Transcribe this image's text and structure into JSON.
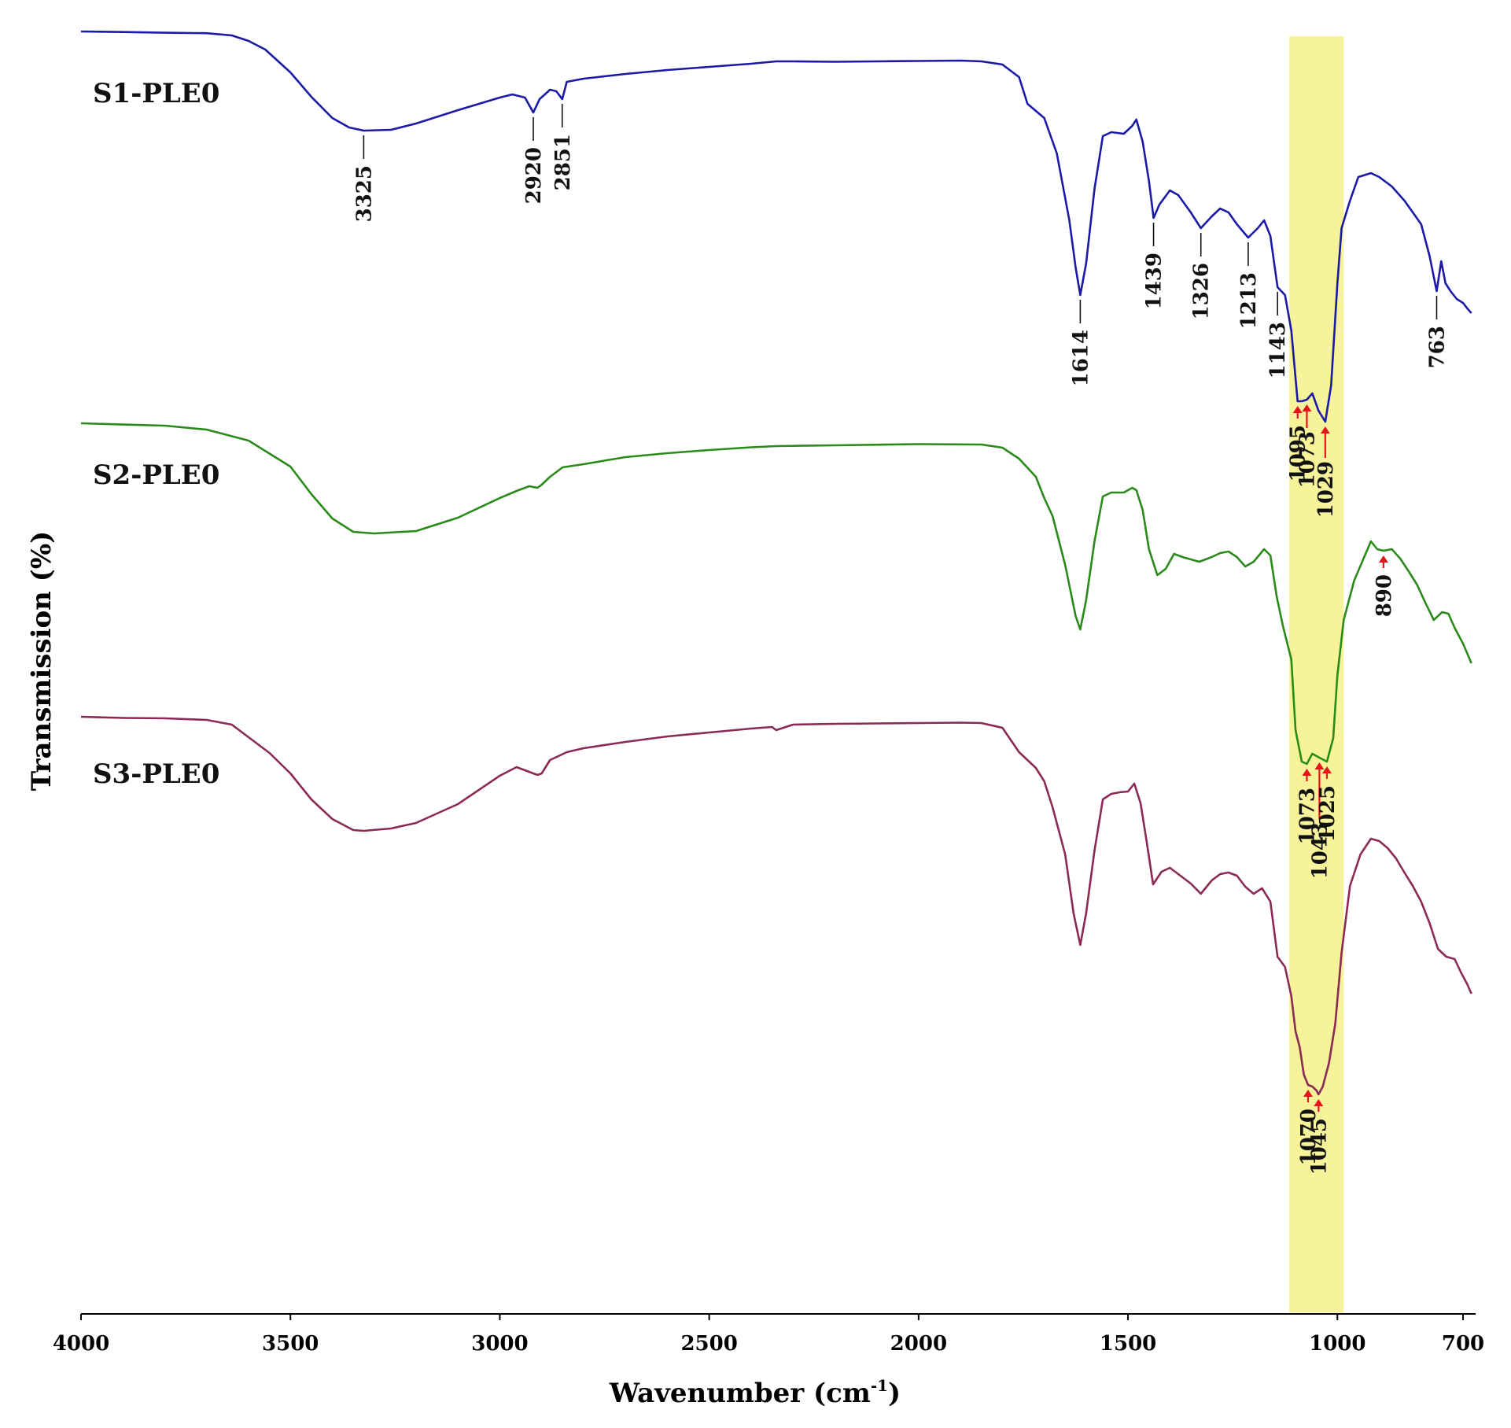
{
  "chart_data": {
    "type": "line",
    "xlabel": "Wavenumber (cm",
    "xlabel_sup": "-1",
    "xlabel_close": ")",
    "ylabel": "Transmission (%)",
    "xlim": [
      4000,
      670
    ],
    "x_reversed": true,
    "xticks": [
      {
        "value": 4000,
        "label": "4000"
      },
      {
        "value": 3500,
        "label": "3500"
      },
      {
        "value": 3000,
        "label": "3000"
      },
      {
        "value": 2500,
        "label": "2500"
      },
      {
        "value": 2000,
        "label": "2000"
      },
      {
        "value": 1500,
        "label": "1500"
      },
      {
        "value": 1000,
        "label": "1000"
      },
      {
        "value": 700,
        "label": "700"
      }
    ],
    "highlight_band": {
      "from": 1115,
      "to": 985,
      "color": "#f7f39a"
    },
    "colors": {
      "s1": "#1a1aa6",
      "s2": "#2a8a1a",
      "s3": "#8a2a55",
      "arrow": "#e8131a"
    },
    "series": [
      {
        "name": "S1-PLE0",
        "color": "#1a1aa6",
        "points": [
          [
            4000,
            0.0
          ],
          [
            3900,
            0.7
          ],
          [
            3800,
            1.6
          ],
          [
            3700,
            2.2
          ],
          [
            3640,
            5.0
          ],
          [
            3600,
            12.0
          ],
          [
            3560,
            23.0
          ],
          [
            3500,
            52.0
          ],
          [
            3450,
            83.0
          ],
          [
            3400,
            110.0
          ],
          [
            3360,
            122.0
          ],
          [
            3325,
            126.0
          ],
          [
            3260,
            125.0
          ],
          [
            3200,
            117.0
          ],
          [
            3100,
            100.0
          ],
          [
            3000,
            84.0
          ],
          [
            2970,
            80.0
          ],
          [
            2940,
            84.0
          ],
          [
            2920,
            103.0
          ],
          [
            2905,
            86.0
          ],
          [
            2880,
            74.0
          ],
          [
            2865,
            76.0
          ],
          [
            2851,
            86.0
          ],
          [
            2840,
            64.0
          ],
          [
            2800,
            60.0
          ],
          [
            2700,
            54.0
          ],
          [
            2600,
            49.0
          ],
          [
            2500,
            45.0
          ],
          [
            2400,
            41.0
          ],
          [
            2340,
            38.0
          ],
          [
            2300,
            38.0
          ],
          [
            2200,
            38.5
          ],
          [
            2100,
            38.0
          ],
          [
            2000,
            37.5
          ],
          [
            1900,
            37.0
          ],
          [
            1850,
            38.0
          ],
          [
            1800,
            42.0
          ],
          [
            1760,
            58.0
          ],
          [
            1740,
            92.0
          ],
          [
            1700,
            110.0
          ],
          [
            1670,
            155.0
          ],
          [
            1640,
            240.0
          ],
          [
            1625,
            300.0
          ],
          [
            1614,
            335.0
          ],
          [
            1600,
            295.0
          ],
          [
            1580,
            200.0
          ],
          [
            1560,
            133.0
          ],
          [
            1540,
            128.0
          ],
          [
            1510,
            130.0
          ],
          [
            1490,
            120.0
          ],
          [
            1480,
            112.0
          ],
          [
            1465,
            140.0
          ],
          [
            1450,
            190.0
          ],
          [
            1439,
            237.0
          ],
          [
            1425,
            220.0
          ],
          [
            1400,
            202.0
          ],
          [
            1380,
            208.0
          ],
          [
            1350,
            230.0
          ],
          [
            1326,
            250.0
          ],
          [
            1300,
            235.0
          ],
          [
            1280,
            225.0
          ],
          [
            1260,
            230.0
          ],
          [
            1240,
            245.0
          ],
          [
            1213,
            262.0
          ],
          [
            1190,
            250.0
          ],
          [
            1175,
            240.0
          ],
          [
            1160,
            260.0
          ],
          [
            1143,
            325.0
          ],
          [
            1125,
            335.0
          ],
          [
            1110,
            380.0
          ],
          [
            1095,
            470.0
          ],
          [
            1085,
            470.0
          ],
          [
            1073,
            468.0
          ],
          [
            1060,
            460.0
          ],
          [
            1045,
            482.0
          ],
          [
            1029,
            496.0
          ],
          [
            1015,
            450.0
          ],
          [
            1000,
            320.0
          ],
          [
            990,
            250.0
          ],
          [
            970,
            215.0
          ],
          [
            950,
            185.0
          ],
          [
            920,
            180.0
          ],
          [
            900,
            185.0
          ],
          [
            870,
            197.0
          ],
          [
            840,
            215.0
          ],
          [
            800,
            245.0
          ],
          [
            780,
            285.0
          ],
          [
            763,
            330.0
          ],
          [
            752,
            292.0
          ],
          [
            742,
            320.0
          ],
          [
            730,
            330.0
          ],
          [
            715,
            340.0
          ],
          [
            700,
            345.0
          ],
          [
            690,
            352.0
          ],
          [
            680,
            358.0
          ]
        ]
      },
      {
        "name": "S2-PLE0",
        "color": "#2a8a1a",
        "points": [
          [
            4000,
            0.0
          ],
          [
            3900,
            1.6
          ],
          [
            3800,
            3.0
          ],
          [
            3700,
            8.0
          ],
          [
            3600,
            22.0
          ],
          [
            3500,
            55.0
          ],
          [
            3450,
            90.0
          ],
          [
            3400,
            121.0
          ],
          [
            3350,
            138.0
          ],
          [
            3300,
            140.0
          ],
          [
            3200,
            137.0
          ],
          [
            3100,
            120.0
          ],
          [
            3000,
            95.0
          ],
          [
            2960,
            86.0
          ],
          [
            2930,
            80.0
          ],
          [
            2910,
            82.0
          ],
          [
            2900,
            78.0
          ],
          [
            2880,
            68.0
          ],
          [
            2850,
            56.0
          ],
          [
            2800,
            52.0
          ],
          [
            2700,
            43.0
          ],
          [
            2600,
            38.0
          ],
          [
            2500,
            34.0
          ],
          [
            2400,
            30.5
          ],
          [
            2340,
            29.0
          ],
          [
            2200,
            28.0
          ],
          [
            2000,
            26.5
          ],
          [
            1850,
            27.0
          ],
          [
            1800,
            31.0
          ],
          [
            1760,
            45.0
          ],
          [
            1720,
            68.0
          ],
          [
            1700,
            95.0
          ],
          [
            1680,
            118.0
          ],
          [
            1650,
            180.0
          ],
          [
            1625,
            245.0
          ],
          [
            1614,
            262.0
          ],
          [
            1600,
            225.0
          ],
          [
            1580,
            150.0
          ],
          [
            1560,
            93.0
          ],
          [
            1540,
            88.0
          ],
          [
            1510,
            88.0
          ],
          [
            1490,
            82.0
          ],
          [
            1480,
            85.0
          ],
          [
            1465,
            110.0
          ],
          [
            1450,
            160.0
          ],
          [
            1430,
            193.0
          ],
          [
            1410,
            185.0
          ],
          [
            1390,
            166.0
          ],
          [
            1370,
            170.0
          ],
          [
            1330,
            176.0
          ],
          [
            1300,
            170.0
          ],
          [
            1280,
            165.0
          ],
          [
            1260,
            163.0
          ],
          [
            1240,
            170.0
          ],
          [
            1220,
            182.0
          ],
          [
            1200,
            176.0
          ],
          [
            1175,
            160.0
          ],
          [
            1160,
            168.0
          ],
          [
            1145,
            220.0
          ],
          [
            1130,
            258.0
          ],
          [
            1110,
            300.0
          ],
          [
            1100,
            390.0
          ],
          [
            1085,
            430.0
          ],
          [
            1073,
            433.0
          ],
          [
            1060,
            420.0
          ],
          [
            1043,
            425.0
          ],
          [
            1025,
            430.0
          ],
          [
            1010,
            400.0
          ],
          [
            1000,
            320.0
          ],
          [
            985,
            250.0
          ],
          [
            960,
            200.0
          ],
          [
            940,
            175.0
          ],
          [
            920,
            150.0
          ],
          [
            905,
            160.0
          ],
          [
            890,
            162.0
          ],
          [
            870,
            160.0
          ],
          [
            850,
            172.0
          ],
          [
            830,
            188.0
          ],
          [
            810,
            205.0
          ],
          [
            790,
            228.0
          ],
          [
            770,
            250.0
          ],
          [
            750,
            240.0
          ],
          [
            735,
            242.0
          ],
          [
            720,
            260.0
          ],
          [
            700,
            280.0
          ],
          [
            680,
            305.0
          ]
        ]
      },
      {
        "name": "S3-PLE0",
        "color": "#8a2a55",
        "points": [
          [
            4000,
            0.0
          ],
          [
            3900,
            1.5
          ],
          [
            3800,
            2.0
          ],
          [
            3700,
            4.0
          ],
          [
            3640,
            10.0
          ],
          [
            3600,
            26.0
          ],
          [
            3550,
            46.0
          ],
          [
            3500,
            72.0
          ],
          [
            3450,
            105.0
          ],
          [
            3400,
            130.0
          ],
          [
            3350,
            144.0
          ],
          [
            3325,
            145.0
          ],
          [
            3260,
            142.0
          ],
          [
            3200,
            135.0
          ],
          [
            3100,
            111.0
          ],
          [
            3000,
            75.0
          ],
          [
            2960,
            64.0
          ],
          [
            2930,
            70.0
          ],
          [
            2910,
            74.0
          ],
          [
            2900,
            72.0
          ],
          [
            2880,
            55.0
          ],
          [
            2840,
            45.0
          ],
          [
            2800,
            40.0
          ],
          [
            2700,
            32.0
          ],
          [
            2600,
            25.0
          ],
          [
            2500,
            20.0
          ],
          [
            2400,
            15.0
          ],
          [
            2350,
            13.0
          ],
          [
            2340,
            17.0
          ],
          [
            2300,
            10.0
          ],
          [
            2200,
            9.0
          ],
          [
            2100,
            8.5
          ],
          [
            2000,
            8.0
          ],
          [
            1900,
            7.5
          ],
          [
            1850,
            8.0
          ],
          [
            1800,
            14.0
          ],
          [
            1760,
            45.0
          ],
          [
            1720,
            65.0
          ],
          [
            1700,
            82.0
          ],
          [
            1680,
            115.0
          ],
          [
            1650,
            175.0
          ],
          [
            1630,
            250.0
          ],
          [
            1614,
            290.0
          ],
          [
            1600,
            250.0
          ],
          [
            1580,
            170.0
          ],
          [
            1560,
            105.0
          ],
          [
            1540,
            98.0
          ],
          [
            1520,
            96.0
          ],
          [
            1500,
            95.0
          ],
          [
            1485,
            85.0
          ],
          [
            1470,
            110.0
          ],
          [
            1455,
            160.0
          ],
          [
            1440,
            213.0
          ],
          [
            1420,
            197.0
          ],
          [
            1400,
            192.0
          ],
          [
            1380,
            200.0
          ],
          [
            1350,
            212.0
          ],
          [
            1326,
            225.0
          ],
          [
            1300,
            208.0
          ],
          [
            1280,
            200.0
          ],
          [
            1260,
            198.0
          ],
          [
            1240,
            202.0
          ],
          [
            1220,
            216.0
          ],
          [
            1200,
            225.0
          ],
          [
            1180,
            218.0
          ],
          [
            1160,
            235.0
          ],
          [
            1143,
            305.0
          ],
          [
            1125,
            318.0
          ],
          [
            1110,
            355.0
          ],
          [
            1100,
            400.0
          ],
          [
            1090,
            420.0
          ],
          [
            1080,
            455.0
          ],
          [
            1070,
            468.0
          ],
          [
            1060,
            470.0
          ],
          [
            1050,
            475.0
          ],
          [
            1045,
            480.0
          ],
          [
            1035,
            470.0
          ],
          [
            1020,
            440.0
          ],
          [
            1005,
            390.0
          ],
          [
            990,
            300.0
          ],
          [
            970,
            215.0
          ],
          [
            945,
            175.0
          ],
          [
            920,
            155.0
          ],
          [
            900,
            158.0
          ],
          [
            880,
            167.0
          ],
          [
            860,
            180.0
          ],
          [
            840,
            198.0
          ],
          [
            820,
            215.0
          ],
          [
            800,
            235.0
          ],
          [
            780,
            262.0
          ],
          [
            760,
            295.0
          ],
          [
            740,
            305.0
          ],
          [
            720,
            308.0
          ],
          [
            705,
            325.0
          ],
          [
            690,
            340.0
          ],
          [
            680,
            352.0
          ]
        ]
      }
    ],
    "series_labels": [
      "S1-PLE0",
      "S2-PLE0",
      "S3-PLE0"
    ],
    "annotations": {
      "s1_lines": [
        {
          "x": 3325,
          "label": "3325"
        },
        {
          "x": 2920,
          "label": "2920"
        },
        {
          "x": 2851,
          "label": "2851"
        },
        {
          "x": 1614,
          "label": "1614"
        },
        {
          "x": 1439,
          "label": "1439"
        },
        {
          "x": 1326,
          "label": "1326"
        },
        {
          "x": 1213,
          "label": "1213"
        },
        {
          "x": 1143,
          "label": "1143"
        },
        {
          "x": 763,
          "label": "763"
        }
      ],
      "s1_arrows": [
        {
          "x": 1095,
          "label": "1095"
        },
        {
          "x": 1073,
          "label": "1073"
        },
        {
          "x": 1029,
          "label": "1029"
        }
      ],
      "s2_arrows": [
        {
          "x": 1073,
          "label": "1073"
        },
        {
          "x": 1043,
          "label": "1043"
        },
        {
          "x": 1025,
          "label": "1025"
        },
        {
          "x": 890,
          "label": "890"
        }
      ],
      "s3_arrows": [
        {
          "x": 1070,
          "label": "1070"
        },
        {
          "x": 1045,
          "label": "1045"
        }
      ]
    }
  }
}
